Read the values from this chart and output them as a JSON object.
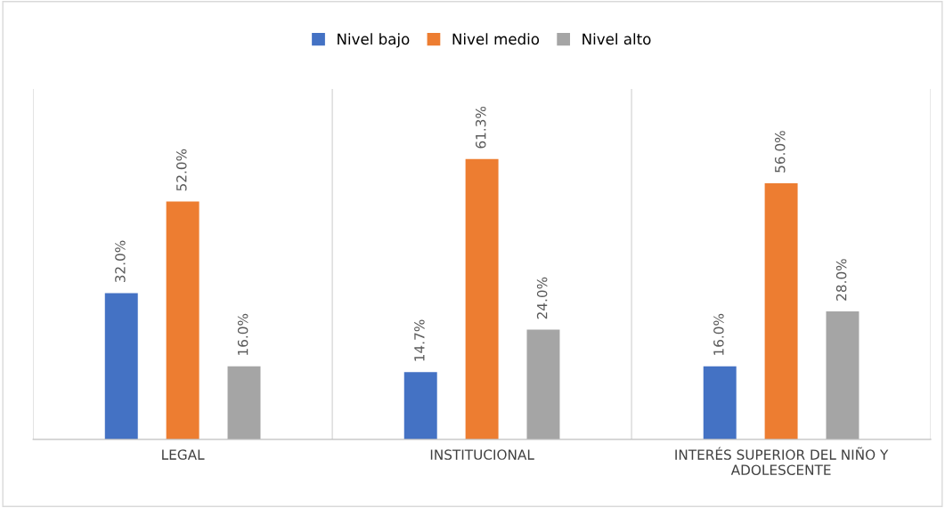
{
  "chart_data": {
    "type": "bar",
    "categories": [
      "LEGAL",
      "INSTITUCIONAL",
      "INTERÉS SUPERIOR DEL NIÑO Y ADOLESCENTE"
    ],
    "series": [
      {
        "name": "Nivel bajo",
        "color": "#4472c4",
        "values": [
          32.0,
          14.7,
          16.0
        ],
        "value_labels": [
          "32.0%",
          "14.7%",
          "16.0%"
        ]
      },
      {
        "name": "Nivel medio",
        "color": "#ed7d31",
        "values": [
          52.0,
          61.3,
          56.0
        ],
        "value_labels": [
          "52.0%",
          "61.3%",
          "56.0%"
        ]
      },
      {
        "name": "Nivel alto",
        "color": "#a5a5a5",
        "values": [
          16.0,
          24.0,
          28.0
        ],
        "value_labels": [
          "16.0%",
          "24.0%",
          "28.0%"
        ]
      }
    ],
    "grid": "x",
    "legend": "top",
    "tick_labels": "x"
  }
}
